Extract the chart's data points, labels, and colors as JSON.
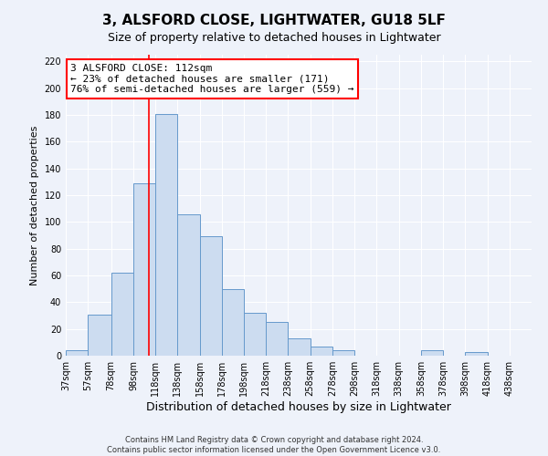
{
  "title1": "3, ALSFORD CLOSE, LIGHTWATER, GU18 5LF",
  "title2": "Size of property relative to detached houses in Lightwater",
  "xlabel": "Distribution of detached houses by size in Lightwater",
  "ylabel": "Number of detached properties",
  "bar_edges": [
    37,
    57,
    78,
    98,
    118,
    138,
    158,
    178,
    198,
    218,
    238,
    258,
    278,
    298,
    318,
    338,
    358,
    378,
    398,
    418,
    438,
    458
  ],
  "bar_heights": [
    4,
    31,
    62,
    129,
    181,
    106,
    89,
    50,
    32,
    25,
    13,
    7,
    4,
    0,
    0,
    0,
    4,
    0,
    3,
    0,
    0
  ],
  "bar_color": "#ccdcf0",
  "bar_edgecolor": "#6699cc",
  "ref_line_x": 112,
  "ref_line_color": "red",
  "annotation_line1": "3 ALSFORD CLOSE: 112sqm",
  "annotation_line2": "← 23% of detached houses are smaller (171)",
  "annotation_line3": "76% of semi-detached houses are larger (559) →",
  "annotation_box_edgecolor": "red",
  "annotation_box_facecolor": "white",
  "ylim": [
    0,
    225
  ],
  "yticks": [
    0,
    20,
    40,
    60,
    80,
    100,
    120,
    140,
    160,
    180,
    200,
    220
  ],
  "xtick_labels": [
    "37sqm",
    "57sqm",
    "78sqm",
    "98sqm",
    "118sqm",
    "138sqm",
    "158sqm",
    "178sqm",
    "198sqm",
    "218sqm",
    "238sqm",
    "258sqm",
    "278sqm",
    "298sqm",
    "318sqm",
    "338sqm",
    "358sqm",
    "378sqm",
    "398sqm",
    "418sqm",
    "438sqm"
  ],
  "footer1": "Contains HM Land Registry data © Crown copyright and database right 2024.",
  "footer2": "Contains public sector information licensed under the Open Government Licence v3.0.",
  "background_color": "#eef2fa",
  "grid_color": "#ffffff",
  "title1_fontsize": 11,
  "title2_fontsize": 9,
  "ylabel_fontsize": 8,
  "xlabel_fontsize": 9,
  "annotation_fontsize": 8,
  "tick_fontsize": 7
}
